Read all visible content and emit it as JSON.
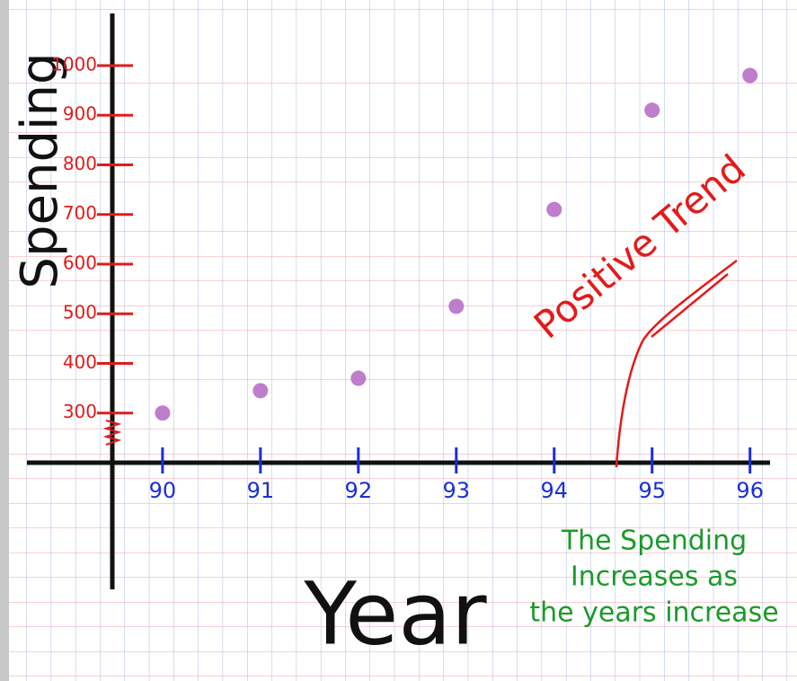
{
  "chart_data": {
    "type": "scatter",
    "y_label": "Spending",
    "x_label": "Year",
    "annotation": "Positive Trend",
    "note_lines": [
      "The Spending",
      "Increases as",
      "the years increase"
    ],
    "x": [
      90,
      91,
      92,
      93,
      94,
      95,
      96
    ],
    "values": [
      300,
      345,
      370,
      515,
      710,
      910,
      980
    ],
    "color": "#b86fc8",
    "xlim": [
      88.34,
      96.48
    ],
    "xticks": [
      90,
      91,
      92,
      93,
      94,
      95,
      96
    ],
    "ylim": [
      200,
      1132
    ],
    "yticks": [
      300,
      400,
      500,
      600,
      700,
      800,
      900,
      1000
    ]
  }
}
